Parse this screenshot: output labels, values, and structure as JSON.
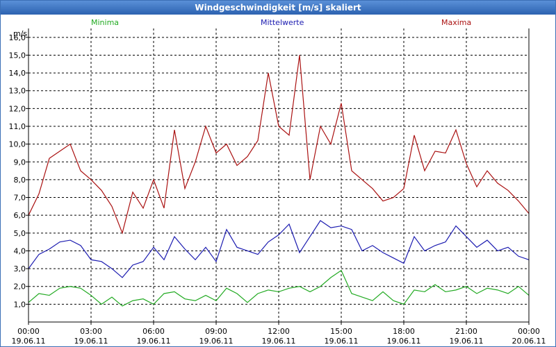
{
  "window": {
    "title": "Windgeschwindigkeit [m/s] skaliert"
  },
  "colors": {
    "minima": "#22aa22",
    "mittelwerte": "#1b1bb0",
    "maxima": "#aa1111",
    "grid": "#000000"
  },
  "chart_data": {
    "type": "line",
    "title": "Windgeschwindigkeit [m/s] skaliert",
    "ylabel": "m/s",
    "xlabel": "",
    "ylim": [
      0,
      16.5
    ],
    "xlim": [
      0,
      24
    ],
    "grid": true,
    "legend": "top",
    "y_ticks": [
      "1,0",
      "2,0",
      "3,0",
      "4,0",
      "5,0",
      "6,0",
      "7,0",
      "8,0",
      "9,0",
      "10,0",
      "11,0",
      "12,0",
      "13,0",
      "14,0",
      "15,0",
      "16,0"
    ],
    "y_tick_values": [
      1,
      2,
      3,
      4,
      5,
      6,
      7,
      8,
      9,
      10,
      11,
      12,
      13,
      14,
      15,
      16
    ],
    "x_ticks": [
      {
        "time": "00:00",
        "date": "19.06.11"
      },
      {
        "time": "03:00",
        "date": "19.06.11"
      },
      {
        "time": "06:00",
        "date": "19.06.11"
      },
      {
        "time": "09:00",
        "date": "19.06.11"
      },
      {
        "time": "12:00",
        "date": "19.06.11"
      },
      {
        "time": "15:00",
        "date": "19.06.11"
      },
      {
        "time": "18:00",
        "date": "19.06.11"
      },
      {
        "time": "21:00",
        "date": "19.06.11"
      },
      {
        "time": "00:00",
        "date": "20.06.11"
      }
    ],
    "x_tick_values": [
      0,
      3,
      6,
      9,
      12,
      15,
      18,
      21,
      24
    ],
    "series": [
      {
        "name": "Minima",
        "color_key": "minima",
        "x": [
          0,
          0.5,
          1,
          1.5,
          2,
          2.5,
          3,
          3.5,
          4,
          4.5,
          5,
          5.5,
          6,
          6.5,
          7,
          7.5,
          8,
          8.5,
          9,
          9.5,
          10,
          10.5,
          11,
          11.5,
          12,
          12.5,
          13,
          13.5,
          14,
          14.5,
          15,
          15.5,
          16,
          16.5,
          17,
          17.5,
          18,
          18.5,
          19,
          19.5,
          20,
          20.5,
          21,
          21.5,
          22,
          22.5,
          23,
          23.5,
          24
        ],
        "values": [
          1.1,
          1.6,
          1.5,
          1.9,
          2.0,
          1.9,
          1.5,
          1.0,
          1.4,
          0.9,
          1.2,
          1.3,
          1.0,
          1.6,
          1.7,
          1.3,
          1.2,
          1.5,
          1.2,
          1.9,
          1.6,
          1.1,
          1.6,
          1.8,
          1.7,
          1.9,
          2.0,
          1.7,
          2.0,
          2.5,
          2.9,
          1.6,
          1.4,
          1.2,
          1.7,
          1.2,
          1.0,
          1.8,
          1.7,
          2.1,
          1.7,
          1.8,
          2.0,
          1.6,
          1.9,
          1.8,
          1.6,
          2.0,
          1.5
        ]
      },
      {
        "name": "Mittelwerte",
        "color_key": "mittelwerte",
        "x": [
          0,
          0.5,
          1,
          1.5,
          2,
          2.5,
          3,
          3.5,
          4,
          4.5,
          5,
          5.5,
          6,
          6.5,
          7,
          7.5,
          8,
          8.5,
          9,
          9.5,
          10,
          10.5,
          11,
          11.5,
          12,
          12.5,
          13,
          13.5,
          14,
          14.5,
          15,
          15.5,
          16,
          16.5,
          17,
          17.5,
          18,
          18.5,
          19,
          19.5,
          20,
          20.5,
          21,
          21.5,
          22,
          22.5,
          23,
          23.5,
          24
        ],
        "values": [
          3.0,
          3.8,
          4.1,
          4.5,
          4.6,
          4.3,
          3.5,
          3.4,
          3.0,
          2.5,
          3.2,
          3.4,
          4.2,
          3.5,
          4.8,
          4.1,
          3.5,
          4.2,
          3.4,
          5.2,
          4.2,
          4.0,
          3.8,
          4.5,
          4.9,
          5.5,
          3.9,
          4.8,
          5.7,
          5.3,
          5.4,
          5.2,
          4.0,
          4.3,
          3.9,
          3.6,
          3.3,
          4.8,
          4.0,
          4.3,
          4.5,
          5.4,
          4.8,
          4.2,
          4.6,
          4.0,
          4.2,
          3.7,
          3.5
        ]
      },
      {
        "name": "Maxima",
        "color_key": "maxima",
        "x": [
          0,
          0.5,
          1,
          1.5,
          2,
          2.5,
          3,
          3.5,
          4,
          4.5,
          5,
          5.5,
          6,
          6.5,
          7,
          7.5,
          8,
          8.5,
          9,
          9.5,
          10,
          10.5,
          11,
          11.5,
          12,
          12.5,
          13,
          13.5,
          14,
          14.5,
          15,
          15.5,
          16,
          16.5,
          17,
          17.5,
          18,
          18.5,
          19,
          19.5,
          20,
          20.5,
          21,
          21.5,
          22,
          22.5,
          23,
          23.5,
          24
        ],
        "values": [
          6.0,
          7.2,
          9.2,
          9.6,
          10.0,
          8.5,
          8.0,
          7.4,
          6.5,
          5.0,
          7.3,
          6.4,
          8.0,
          6.4,
          10.8,
          7.5,
          9.0,
          11.0,
          9.5,
          10.0,
          8.8,
          9.3,
          10.2,
          14.0,
          11.0,
          10.5,
          15.0,
          8.0,
          11.0,
          10.0,
          12.3,
          8.5,
          8.0,
          7.5,
          6.8,
          7.0,
          7.5,
          10.5,
          8.5,
          9.6,
          9.5,
          10.8,
          8.9,
          7.6,
          8.5,
          7.8,
          7.4,
          6.8,
          6.1
        ]
      }
    ]
  }
}
